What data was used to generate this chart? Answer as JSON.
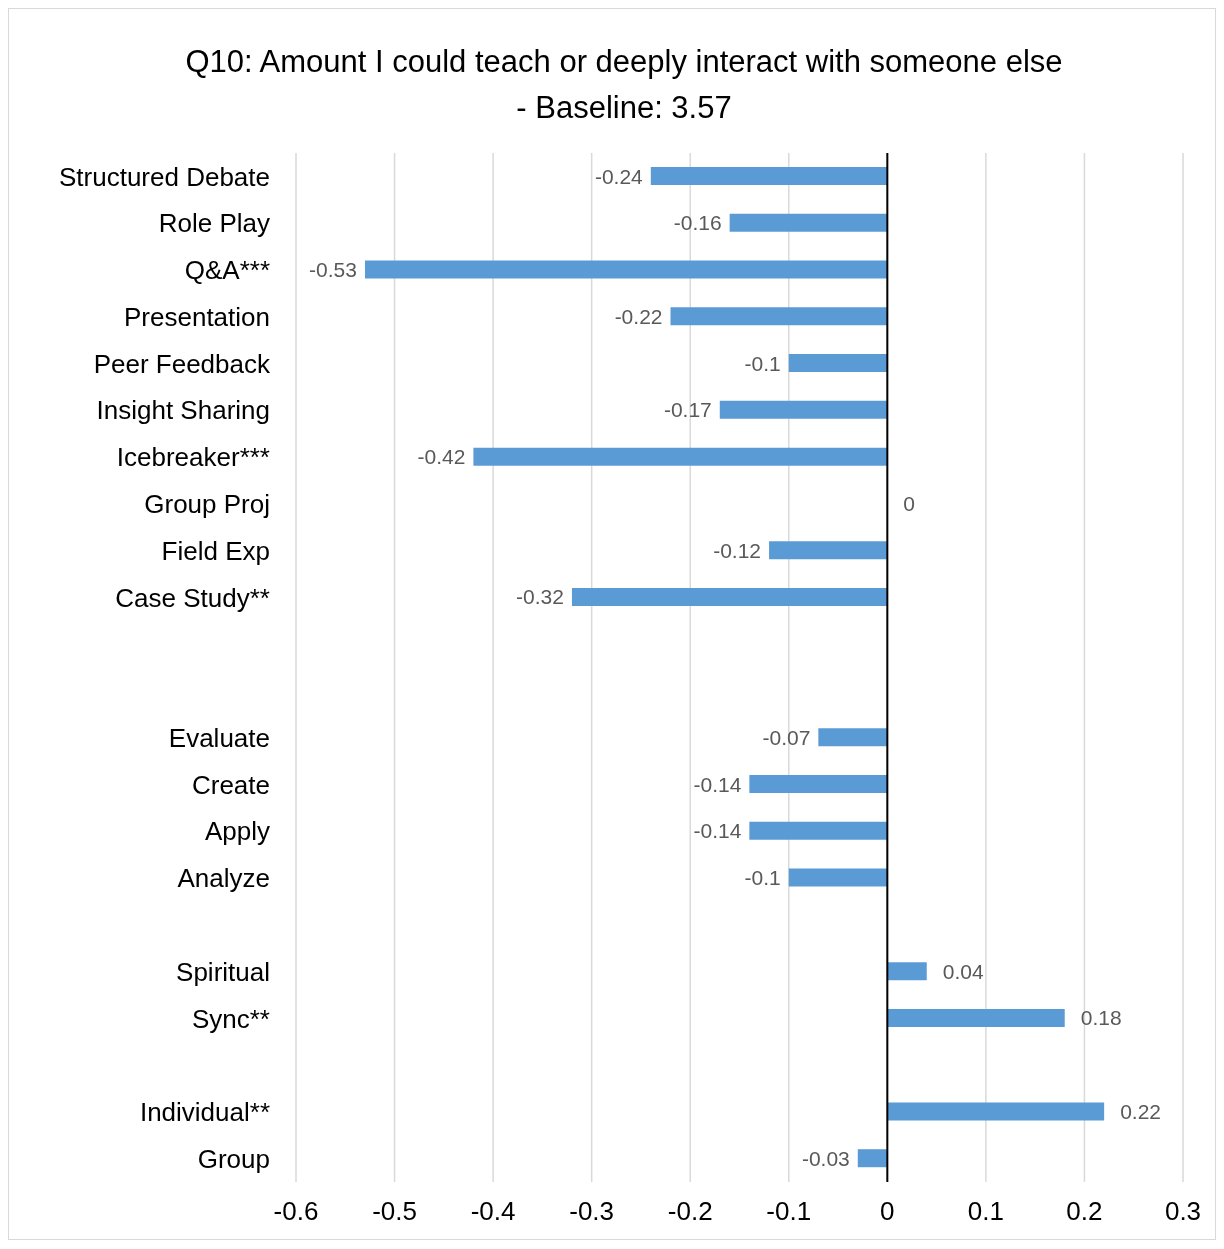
{
  "chart_data": {
    "type": "bar",
    "orientation": "horizontal",
    "title": "Q10: Amount I could teach or deeply interact with someone else - Baseline: 3.57",
    "categories": [
      "Structured Debate",
      "Role Play",
      "Q&A***",
      "Presentation",
      "Peer Feedback",
      "Insight Sharing",
      "Icebreaker***",
      "Group Proj",
      "Field Exp",
      "Case Study**",
      null,
      null,
      "Evaluate",
      "Create",
      "Apply",
      "Analyze",
      null,
      "Spiritual",
      "Sync**",
      null,
      "Individual**",
      "Group"
    ],
    "values": [
      -0.24,
      -0.16,
      -0.53,
      -0.22,
      -0.1,
      -0.17,
      -0.42,
      0,
      -0.12,
      -0.32,
      null,
      null,
      -0.07,
      -0.14,
      -0.14,
      -0.1,
      null,
      0.04,
      0.18,
      null,
      0.22,
      -0.03
    ],
    "color": "#5b9bd5",
    "xlim": [
      -0.6,
      0.3
    ],
    "xticks": [
      -0.6,
      -0.5,
      -0.4,
      -0.3,
      -0.2,
      -0.1,
      0,
      0.1,
      0.2,
      0.3
    ],
    "grid": "x",
    "data_labels": true
  }
}
